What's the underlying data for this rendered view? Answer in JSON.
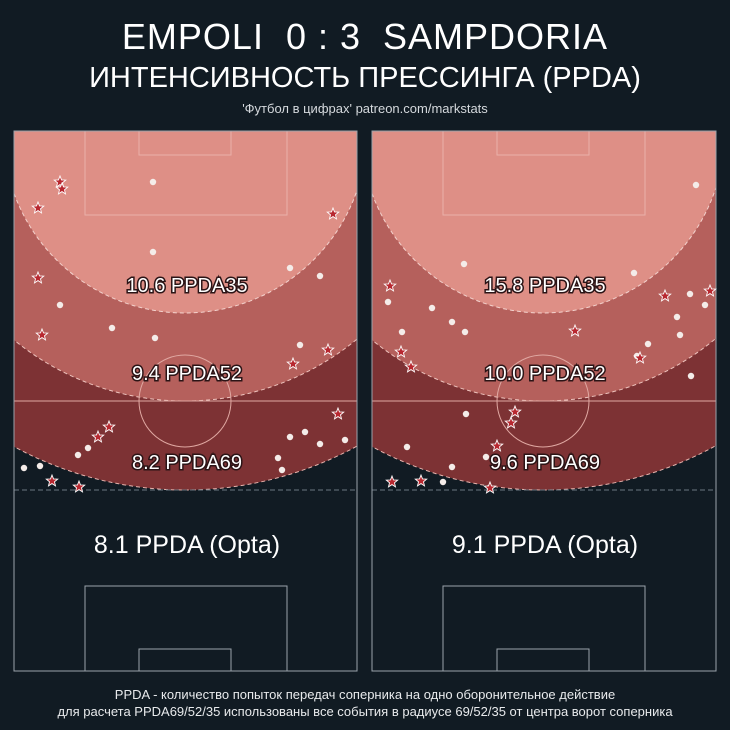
{
  "header": {
    "title": "EMPOLI  0 : 3  SAMPDORIA",
    "subtitle": "ИНТЕНСИВНОСТЬ ПРЕССИНГА (PPDA)",
    "credit": "'Футбол в цифрах' patreon.com/markstats"
  },
  "colors": {
    "background": "#111b23",
    "zone35": "#de8f86",
    "zone52": "#b5605c",
    "zone69": "#7d3234",
    "lines": "#9aa3ab"
  },
  "teams": [
    {
      "name": "Empoli",
      "ppda35": "10.6 PPDA35",
      "ppda52": "9.4 PPDA52",
      "ppda69": "8.2 PPDA69",
      "opta": "8.1 PPDA (Opta)"
    },
    {
      "name": "Sampdoria",
      "ppda35": "15.8 PPDA35",
      "ppda52": "10.0 PPDA52",
      "ppda69": "9.6 PPDA69",
      "opta": "9.1 PPDA (Opta)"
    }
  ],
  "footer": {
    "line1": "PPDA - количество попыток передач соперника на одно оборонительное действие",
    "line2": "для расчета PPDA69/52/35 использованы все события в радиусе 69/52/35 от центра ворот соперника"
  }
}
